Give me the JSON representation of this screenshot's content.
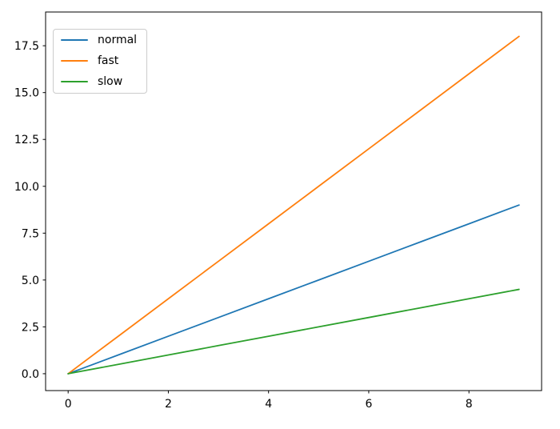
{
  "chart_data": {
    "type": "line",
    "title": "",
    "xlabel": "",
    "ylabel": "",
    "grid": false,
    "legend_position": "upper-left",
    "xlim": [
      -0.45,
      9.45
    ],
    "ylim": [
      -0.9,
      19.3
    ],
    "xticks": [
      0,
      2,
      4,
      6,
      8
    ],
    "xtick_labels": [
      "0",
      "2",
      "4",
      "6",
      "8"
    ],
    "yticks": [
      0,
      2.5,
      5,
      7.5,
      10,
      12.5,
      15,
      17.5
    ],
    "ytick_labels": [
      "0.0",
      "2.5",
      "5.0",
      "7.5",
      "10.0",
      "12.5",
      "15.0",
      "17.5"
    ],
    "x": [
      0,
      1,
      2,
      3,
      4,
      5,
      6,
      7,
      8,
      9
    ],
    "series": [
      {
        "name": "normal",
        "color": "#1f77b4",
        "values": [
          0,
          1,
          2,
          3,
          4,
          5,
          6,
          7,
          8,
          9
        ]
      },
      {
        "name": "fast",
        "color": "#ff7f0e",
        "values": [
          0,
          2,
          4,
          6,
          8,
          10,
          12,
          14,
          16,
          18
        ]
      },
      {
        "name": "slow",
        "color": "#2ca02c",
        "values": [
          0,
          0.5,
          1,
          1.5,
          2,
          2.5,
          3,
          3.5,
          4,
          4.5
        ]
      }
    ]
  },
  "colors": {
    "background": "#ffffff",
    "spine": "#000000",
    "tick_text": "#000000",
    "legend_border": "#cccccc"
  }
}
